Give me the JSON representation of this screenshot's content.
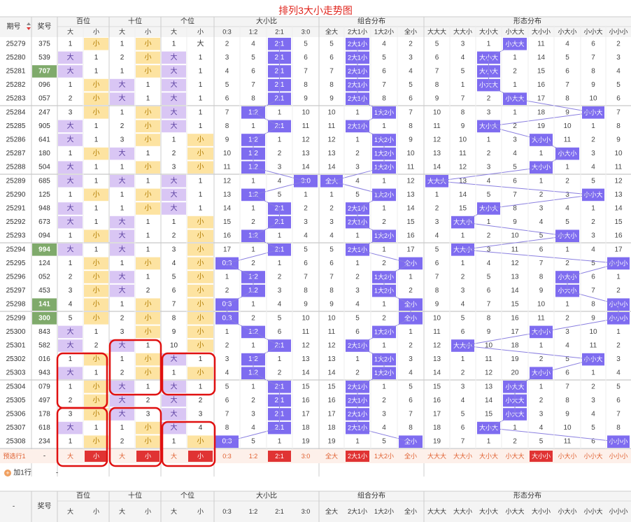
{
  "title": "排列3大小走势图",
  "header": {
    "period": "期号",
    "award": "奖号",
    "groups": [
      "百位",
      "十位",
      "个位",
      "大小比",
      "组合分布",
      "形态分布"
    ],
    "bigsmall": [
      "大",
      "小"
    ],
    "ratio": [
      "0:3",
      "1:2",
      "2:1",
      "3:0"
    ],
    "combo": [
      "全大",
      "2大1小",
      "1大2小",
      "全小"
    ],
    "shape": [
      "大大大",
      "大大小",
      "大小大",
      "小大大",
      "大小小",
      "小大小",
      "小小大",
      "小小小"
    ]
  },
  "footer": {
    "select_label": "预选行1",
    "select_dash": "-",
    "add_label": "加1行",
    "add_dash": "-",
    "dash": "-",
    "award": "奖号"
  },
  "colors": {
    "title": "#e0261e",
    "purple": "#d9c6f4",
    "yellow": "#fde3a1",
    "blue": "#7e6cf0",
    "green": "#7faa6b",
    "red": "#e03333",
    "line": "#8a7fe0"
  },
  "chart_data": {
    "type": "table",
    "rows": [
      {
        "p": "25279",
        "n": "375",
        "h": [
          [
            1,
            "小"
          ],
          [
            1,
            "小"
          ],
          [
            1,
            "大"
          ]
        ],
        "hm": [
          1,
          1,
          1
        ],
        "r": [
          2,
          4,
          "2:1",
          5
        ],
        "c": [
          5,
          "2大1小",
          4,
          2
        ],
        "s": [
          5,
          3,
          1,
          "小大大",
          11,
          4,
          6,
          2
        ]
      },
      {
        "p": "25280",
        "n": "539",
        "h": [
          [
            "大",
            1
          ],
          [
            2,
            "小"
          ],
          [
            "大",
            1
          ]
        ],
        "hm": [
          2,
          3,
          2
        ],
        "r": [
          3,
          5,
          "2:1",
          6
        ],
        "c": [
          6,
          "2大1小",
          5,
          3
        ],
        "s": [
          6,
          4,
          "大小大",
          1,
          14,
          5,
          7,
          3
        ]
      },
      {
        "p": "25281",
        "n": "707",
        "h": [
          [
            "大",
            1
          ],
          [
            1,
            "小"
          ],
          [
            "大",
            1
          ]
        ],
        "hm": [
          2,
          2,
          4
        ],
        "r": [
          4,
          6,
          "2:1",
          7
        ],
        "c": [
          7,
          "2大1小",
          6,
          4
        ],
        "s": [
          7,
          5,
          "大小大",
          2,
          15,
          6,
          8,
          4
        ]
      },
      {
        "p": "25282",
        "n": "096",
        "h": [
          [
            1,
            "小"
          ],
          [
            "大",
            1
          ],
          [
            "大",
            1
          ]
        ],
        "hm": [
          1,
          3,
          5
        ],
        "r": [
          5,
          7,
          "2:1",
          8
        ],
        "c": [
          8,
          "2大1小",
          7,
          5
        ],
        "s": [
          8,
          1,
          "小大大",
          1,
          16,
          7,
          9,
          5
        ]
      },
      {
        "p": "25283",
        "n": "057",
        "h": [
          [
            2,
            "小"
          ],
          [
            "大",
            1
          ],
          [
            "大",
            1
          ]
        ],
        "hm": [
          2,
          2,
          6
        ],
        "r": [
          6,
          8,
          "2:1",
          9
        ],
        "c": [
          9,
          "2大1小",
          8,
          6
        ],
        "s": [
          9,
          7,
          2,
          "小大大",
          17,
          8,
          10,
          6
        ]
      },
      {
        "p": "25284",
        "n": "247",
        "h": [
          [
            3,
            "小"
          ],
          [
            1,
            "小"
          ],
          [
            "大",
            1
          ]
        ],
        "hm": [
          3,
          1,
          7
        ],
        "r": [
          7,
          "1:2",
          1,
          10
        ],
        "c": [
          10,
          1,
          "1大2小",
          7
        ],
        "s": [
          10,
          8,
          3,
          1,
          18,
          9,
          "小小大",
          7
        ]
      },
      {
        "p": "25285",
        "n": "905",
        "h": [
          [
            "大",
            1
          ],
          [
            2,
            "小"
          ],
          [
            "大",
            1
          ]
        ],
        "hm": [
          1,
          2,
          8
        ],
        "r": [
          8,
          1,
          "2:1",
          11
        ],
        "c": [
          11,
          "2大1小",
          1,
          8
        ],
        "s": [
          11,
          9,
          "大小大",
          2,
          19,
          10,
          1,
          8
        ]
      },
      {
        "p": "25286",
        "n": "641",
        "h": [
          [
            "大",
            1
          ],
          [
            3,
            "小"
          ],
          [
            1,
            "小"
          ]
        ],
        "hm": [
          2,
          3,
          1
        ],
        "r": [
          9,
          "1:2",
          1,
          12
        ],
        "c": [
          12,
          1,
          "1大2小",
          9
        ],
        "s": [
          12,
          10,
          1,
          3,
          "大小小",
          11,
          2,
          9
        ]
      },
      {
        "p": "25287",
        "n": "180",
        "h": [
          [
            1,
            "小"
          ],
          [
            "大",
            1
          ],
          [
            2,
            "小"
          ]
        ],
        "hm": [
          1,
          2,
          2
        ],
        "r": [
          10,
          "1:2",
          2,
          13
        ],
        "c": [
          13,
          2,
          "1大2小",
          10
        ],
        "s": [
          13,
          11,
          2,
          4,
          1,
          "小大小",
          3,
          10
        ]
      },
      {
        "p": "25288",
        "n": "504",
        "h": [
          [
            "大",
            1
          ],
          [
            1,
            "小"
          ],
          [
            3,
            "小"
          ]
        ],
        "hm": [
          2,
          1,
          3
        ],
        "r": [
          11,
          "1:2",
          3,
          14
        ],
        "c": [
          14,
          3,
          "1大2小",
          11
        ],
        "s": [
          14,
          12,
          3,
          5,
          "大小小",
          1,
          4,
          11
        ]
      },
      {
        "p": "25289",
        "n": "685",
        "h": [
          [
            "大",
            1
          ],
          [
            "大",
            1
          ],
          [
            "大",
            1
          ]
        ],
        "hm": [
          3,
          2,
          4
        ],
        "r": [
          12,
          1,
          4,
          "3:0"
        ],
        "c": [
          "全大",
          4,
          1,
          12
        ],
        "s": [
          "大大大",
          13,
          4,
          6,
          1,
          2,
          5,
          12
        ]
      },
      {
        "p": "25290",
        "n": "125",
        "h": [
          [
            1,
            "小"
          ],
          [
            1,
            "小"
          ],
          [
            "大",
            1
          ]
        ],
        "hm": [
          1,
          3,
          5
        ],
        "r": [
          13,
          "1:2",
          5,
          1
        ],
        "c": [
          1,
          5,
          "1大2小",
          13
        ],
        "s": [
          1,
          14,
          5,
          7,
          2,
          3,
          "小小大",
          13
        ]
      },
      {
        "p": "25291",
        "n": "948",
        "h": [
          [
            "大",
            1
          ],
          [
            1,
            "小"
          ],
          [
            "大",
            1
          ]
        ],
        "hm": [
          2,
          2,
          6
        ],
        "r": [
          14,
          1,
          "2:1",
          2
        ],
        "c": [
          2,
          "2大1小",
          1,
          14
        ],
        "s": [
          2,
          15,
          "大小大",
          8,
          3,
          4,
          1,
          14
        ]
      },
      {
        "p": "25292",
        "n": "673",
        "h": [
          [
            "大",
            1
          ],
          [
            "大",
            1
          ],
          [
            1,
            "小"
          ]
        ],
        "hm": [
          3,
          3,
          1
        ],
        "r": [
          15,
          2,
          "2:1",
          3
        ],
        "c": [
          3,
          "2大1小",
          2,
          15
        ],
        "s": [
          3,
          "大大小",
          1,
          9,
          4,
          5,
          2,
          15
        ]
      },
      {
        "p": "25293",
        "n": "094",
        "h": [
          [
            1,
            "小"
          ],
          [
            "大",
            1
          ],
          [
            2,
            "小"
          ]
        ],
        "hm": [
          1,
          4,
          2
        ],
        "r": [
          16,
          "1:2",
          1,
          4
        ],
        "c": [
          4,
          1,
          "1大2小",
          16
        ],
        "s": [
          4,
          1,
          2,
          10,
          5,
          "小大小",
          3,
          16
        ]
      },
      {
        "p": "25294",
        "n": "994",
        "h": [
          [
            "大",
            1
          ],
          [
            "大",
            1
          ],
          [
            3,
            "小"
          ]
        ],
        "hm": [
          2,
          5,
          3
        ],
        "r": [
          17,
          1,
          "2:1",
          5
        ],
        "c": [
          5,
          "2大1小",
          1,
          17
        ],
        "s": [
          5,
          "大大小",
          3,
          11,
          6,
          1,
          4,
          17
        ]
      },
      {
        "p": "25295",
        "n": "124",
        "h": [
          [
            1,
            "小"
          ],
          [
            1,
            "小"
          ],
          [
            4,
            "小"
          ]
        ],
        "hm": [
          1,
          1,
          4
        ],
        "r": [
          "0:3",
          2,
          1,
          6
        ],
        "c": [
          6,
          1,
          2,
          "全小"
        ],
        "s": [
          6,
          1,
          4,
          12,
          7,
          2,
          5,
          "小小小"
        ]
      },
      {
        "p": "25296",
        "n": "052",
        "h": [
          [
            2,
            "小"
          ],
          [
            "大",
            1
          ],
          [
            5,
            "小"
          ]
        ],
        "hm": [
          2,
          2,
          5
        ],
        "r": [
          1,
          "1:2",
          2,
          7
        ],
        "c": [
          7,
          2,
          "1大2小",
          1
        ],
        "s": [
          7,
          2,
          5,
          13,
          8,
          "小大小",
          6,
          1
        ]
      },
      {
        "p": "25297",
        "n": "453",
        "h": [
          [
            3,
            "小"
          ],
          [
            "大",
            2
          ],
          [
            6,
            "小"
          ]
        ],
        "hm": [
          3,
          2,
          6
        ],
        "r": [
          2,
          "1:2",
          3,
          8
        ],
        "c": [
          8,
          3,
          "1大2小",
          2
        ],
        "s": [
          8,
          3,
          6,
          14,
          9,
          "小大小",
          7,
          2
        ]
      },
      {
        "p": "25298",
        "n": "141",
        "h": [
          [
            4,
            "小"
          ],
          [
            1,
            "小"
          ],
          [
            7,
            "小"
          ]
        ],
        "hm": [
          4,
          1,
          7
        ],
        "r": [
          "0:3",
          1,
          4,
          9
        ],
        "c": [
          9,
          4,
          1,
          "全小"
        ],
        "s": [
          9,
          4,
          7,
          15,
          10,
          1,
          8,
          "小小小"
        ]
      },
      {
        "p": "25299",
        "n": "300",
        "h": [
          [
            5,
            "小"
          ],
          [
            2,
            "小"
          ],
          [
            8,
            "小"
          ]
        ],
        "hm": [
          5,
          2,
          8
        ],
        "r": [
          "0:3",
          2,
          5,
          10
        ],
        "c": [
          10,
          5,
          2,
          "全小"
        ],
        "s": [
          10,
          5,
          8,
          16,
          11,
          2,
          9,
          "小小小"
        ]
      },
      {
        "p": "25300",
        "n": "843",
        "h": [
          [
            "大",
            1
          ],
          [
            3,
            "小"
          ],
          [
            9,
            "小"
          ]
        ],
        "hm": [
          1,
          3,
          9
        ],
        "r": [
          1,
          "1:2",
          6,
          11
        ],
        "c": [
          11,
          6,
          "1大2小",
          1
        ],
        "s": [
          11,
          6,
          9,
          17,
          "大小小",
          3,
          10,
          1
        ]
      },
      {
        "p": "25301",
        "n": "582",
        "h": [
          [
            "大",
            2
          ],
          [
            "大",
            1
          ],
          [
            10,
            "小"
          ]
        ],
        "hm": [
          2,
          1,
          10
        ],
        "r": [
          2,
          1,
          "2:1",
          12
        ],
        "c": [
          12,
          "2大1小",
          1,
          2
        ],
        "s": [
          12,
          "大大小",
          10,
          18,
          1,
          4,
          11,
          2
        ]
      },
      {
        "p": "25302",
        "n": "016",
        "h": [
          [
            1,
            "小"
          ],
          [
            1,
            "小"
          ],
          [
            "大",
            1
          ]
        ],
        "hm": [
          1,
          2,
          1
        ],
        "r": [
          3,
          "1:2",
          1,
          13
        ],
        "c": [
          13,
          1,
          "1大2小",
          3
        ],
        "s": [
          13,
          1,
          11,
          19,
          2,
          5,
          "小小大",
          3
        ]
      },
      {
        "p": "25303",
        "n": "943",
        "h": [
          [
            "大",
            1
          ],
          [
            2,
            "小"
          ],
          [
            1,
            "小"
          ]
        ],
        "hm": [
          2,
          3,
          2
        ],
        "r": [
          4,
          "1:2",
          2,
          14
        ],
        "c": [
          14,
          2,
          "1大2小",
          4
        ],
        "s": [
          14,
          2,
          12,
          20,
          "大小小",
          6,
          1,
          4
        ]
      },
      {
        "p": "25304",
        "n": "079",
        "h": [
          [
            1,
            "小"
          ],
          [
            "大",
            1
          ],
          [
            "大",
            1
          ]
        ],
        "hm": [
          1,
          4,
          3
        ],
        "r": [
          5,
          1,
          "2:1",
          15
        ],
        "c": [
          15,
          "2大1小",
          1,
          5
        ],
        "s": [
          15,
          3,
          13,
          "小大大",
          1,
          7,
          2,
          5
        ]
      },
      {
        "p": "25305",
        "n": "497",
        "h": [
          [
            2,
            "小"
          ],
          [
            "大",
            2
          ],
          [
            "大",
            2
          ]
        ],
        "hm": [
          2,
          5,
          4
        ],
        "r": [
          6,
          2,
          "2:1",
          16
        ],
        "c": [
          16,
          "2大1小",
          2,
          6
        ],
        "s": [
          16,
          4,
          14,
          "小大大",
          2,
          8,
          3,
          6
        ]
      },
      {
        "p": "25306",
        "n": "178",
        "h": [
          [
            3,
            "小"
          ],
          [
            "大",
            3
          ],
          [
            "大",
            3
          ]
        ],
        "hm": [
          3,
          6,
          5
        ],
        "r": [
          7,
          3,
          "2:1",
          17
        ],
        "c": [
          17,
          "2大1小",
          3,
          7
        ],
        "s": [
          17,
          5,
          15,
          "小大大",
          3,
          9,
          4,
          7
        ]
      },
      {
        "p": "25307",
        "n": "618",
        "h": [
          [
            "大",
            1
          ],
          [
            1,
            "小"
          ],
          [
            "大",
            4
          ]
        ],
        "hm": [
          1,
          7,
          6
        ],
        "r": [
          8,
          4,
          "2:1",
          18
        ],
        "c": [
          18,
          "2大1小",
          4,
          8
        ],
        "s": [
          18,
          6,
          "大小大",
          1,
          4,
          10,
          5,
          8
        ]
      },
      {
        "p": "25308",
        "n": "234",
        "h": [
          [
            1,
            "小"
          ],
          [
            2,
            "小"
          ],
          [
            1,
            "小"
          ]
        ],
        "hm": [
          2,
          8,
          7
        ],
        "r": [
          "0:3",
          5,
          1,
          19
        ],
        "c": [
          19,
          1,
          5,
          "全小"
        ],
        "s": [
          19,
          7,
          1,
          2,
          5,
          11,
          6,
          "小小小"
        ]
      }
    ],
    "green_rows": [
      "25281",
      "25294",
      "25298",
      "25299"
    ],
    "select_row": [
      "大",
      "小",
      "大",
      "小",
      "大",
      "小",
      "0:3",
      "1:2",
      "2:1",
      "3:0",
      "全大",
      "2大1小",
      "1大2小",
      "全小",
      "大大大",
      "大大小",
      "大小大",
      "小大大",
      "大小小",
      "小大小",
      "小小大",
      "小小小"
    ],
    "select_active": [
      0,
      1,
      0,
      1,
      0,
      1,
      0,
      0,
      1,
      0,
      0,
      1,
      0,
      0,
      0,
      0,
      0,
      0,
      1,
      0,
      0,
      0
    ]
  }
}
